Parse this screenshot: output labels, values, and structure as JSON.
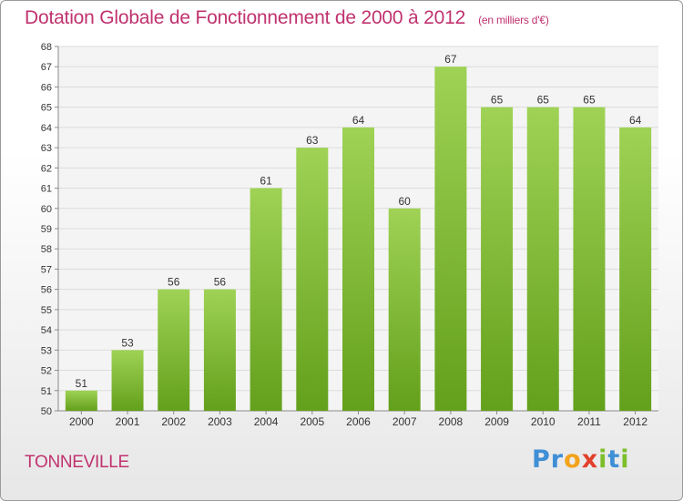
{
  "title": "Dotation Globale de Fonctionnement de 2000 à 2012",
  "subtitle": "(en milliers d'€)",
  "commune": "TONNEVILLE",
  "logo": "Proxiti",
  "colors": {
    "accent": "#c0326f",
    "bar_top": "#9fd255",
    "bar_bottom": "#63a01b"
  },
  "chart_data": {
    "type": "bar",
    "title": "Dotation Globale de Fonctionnement de 2000 à 2012",
    "subtitle": "(en milliers d'€)",
    "categories": [
      "2000",
      "2001",
      "2002",
      "2003",
      "2004",
      "2005",
      "2006",
      "2007",
      "2008",
      "2009",
      "2010",
      "2011",
      "2012"
    ],
    "values": [
      51,
      53,
      56,
      56,
      61,
      63,
      64,
      60,
      67,
      65,
      65,
      65,
      64
    ],
    "ylim": [
      50,
      68
    ],
    "yticks": [
      50,
      51,
      52,
      53,
      54,
      55,
      56,
      57,
      58,
      59,
      60,
      61,
      62,
      63,
      64,
      65,
      66,
      67,
      68
    ],
    "grid": true
  }
}
